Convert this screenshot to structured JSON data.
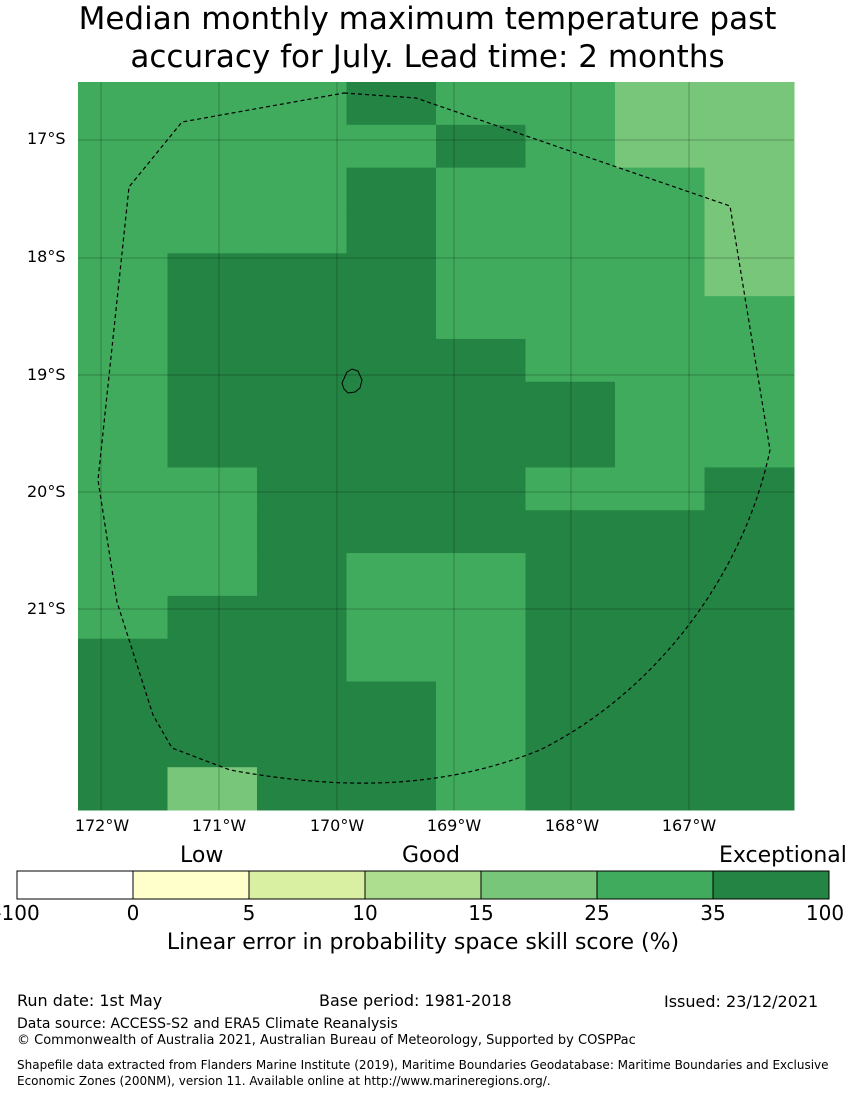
{
  "title": {
    "line1": "Median monthly maximum temperature past",
    "line2": "accuracy for July. Lead time: 2 months"
  },
  "map": {
    "lat_labels": [
      "17°S",
      "18°S",
      "19°S",
      "20°S",
      "21°S"
    ],
    "lon_labels": [
      "172°W",
      "171°W",
      "170°W",
      "169°W",
      "168°W",
      "167°W"
    ],
    "grid_values": [
      [
        25,
        25,
        25,
        35,
        25,
        25,
        15,
        15
      ],
      [
        25,
        25,
        25,
        25,
        35,
        25,
        15,
        15
      ],
      [
        25,
        25,
        25,
        35,
        25,
        25,
        25,
        15
      ],
      [
        25,
        25,
        25,
        35,
        25,
        25,
        25,
        15
      ],
      [
        25,
        35,
        35,
        35,
        25,
        25,
        25,
        15
      ],
      [
        25,
        35,
        35,
        35,
        25,
        25,
        25,
        25
      ],
      [
        25,
        35,
        35,
        35,
        35,
        25,
        25,
        25
      ],
      [
        25,
        35,
        35,
        35,
        35,
        35,
        25,
        25
      ],
      [
        25,
        35,
        35,
        35,
        35,
        35,
        25,
        25
      ],
      [
        25,
        25,
        35,
        35,
        35,
        25,
        25,
        35
      ],
      [
        25,
        25,
        35,
        35,
        35,
        35,
        35,
        35
      ],
      [
        25,
        25,
        35,
        25,
        25,
        35,
        35,
        35
      ],
      [
        25,
        35,
        35,
        25,
        25,
        35,
        35,
        35
      ],
      [
        35,
        35,
        35,
        25,
        25,
        35,
        35,
        35
      ],
      [
        35,
        35,
        35,
        35,
        25,
        35,
        35,
        35
      ],
      [
        35,
        35,
        35,
        35,
        25,
        35,
        35,
        35
      ],
      [
        35,
        15,
        35,
        35,
        25,
        35,
        35,
        35
      ]
    ]
  },
  "colorbar": {
    "categories": [
      "Low",
      "Good",
      "Exceptional"
    ],
    "bins": [
      {
        "color": "#ffffff"
      },
      {
        "color": "#ffffcc"
      },
      {
        "color": "#d9f0a3"
      },
      {
        "color": "#addd8e"
      },
      {
        "color": "#78c679"
      },
      {
        "color": "#41ab5d"
      },
      {
        "color": "#238443"
      }
    ],
    "ticks": [
      "-100",
      "0",
      "5",
      "10",
      "15",
      "25",
      "35",
      "100"
    ],
    "title": "Linear error in probability space skill score (%)"
  },
  "footer": {
    "run_date": "Run date: 1st May",
    "base_period": "Base period: 1981-2018",
    "issued": "Issued: 23/12/2021",
    "data_source": "Data source: ACCESS-S2 and ERA5 Climate Reanalysis",
    "copyright": "© Commonwealth of Australia 2021, Australian Bureau of Meteorology, Supported by COSPPac",
    "shapefile": "Shapefile data extracted from Flanders Marine Institute (2019), Maritime Boundaries Geodatabase: Maritime Boundaries and Exclusive Economic Zones (200NM), version 11. Available online at http://www.marineregions.org/."
  }
}
